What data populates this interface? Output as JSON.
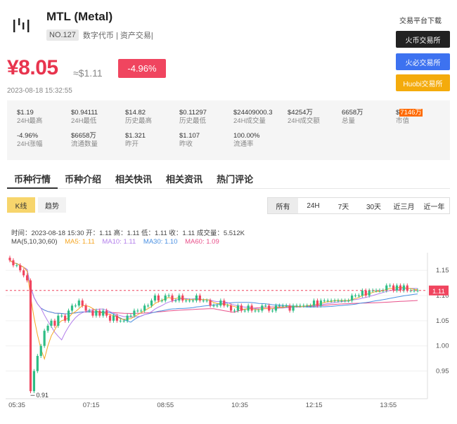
{
  "coin": {
    "name": "MTL (Metal)",
    "rank": "NO.127",
    "tags": "数字代币 | 资产交易|"
  },
  "price": {
    "cny": "¥8.05",
    "usd": "≈$1.11",
    "change": "-4.96%",
    "time": "2023-08-18 15:32:55"
  },
  "exchanges": {
    "title": "交易平台下载",
    "items": [
      "火币交易所",
      "火必交易所",
      "Huobi交易所"
    ]
  },
  "stats": [
    {
      "value": "$1.19",
      "label": "24H最高"
    },
    {
      "value": "$0.94111",
      "label": "24H最低"
    },
    {
      "value": "$14.82",
      "label": "历史最高"
    },
    {
      "value": "$0.11297",
      "label": "历史最低"
    },
    {
      "value": "$24409000.3",
      "label": "24H成交量"
    },
    {
      "value": "$4254万",
      "label": "24H成交额"
    },
    {
      "value": "6658万",
      "label": "总量"
    },
    {
      "value_prefix": "$",
      "value": "7146万",
      "label": "市值"
    },
    {
      "value": "-4.96%",
      "label": "24H涨幅"
    },
    {
      "value": "$6658万",
      "label": "流通数量"
    },
    {
      "value": "$1.321",
      "label": "昨开"
    },
    {
      "value": "$1.107",
      "label": "昨收"
    },
    {
      "value": "100.00%",
      "label": "流通率"
    }
  ],
  "tabs": [
    "币种行情",
    "币种介绍",
    "相关快讯",
    "相关资讯",
    "热门评论"
  ],
  "controls": {
    "kline": "K线",
    "trend": "趋势",
    "ranges": [
      "所有",
      "24H",
      "7天",
      "30天",
      "近三月",
      "近一年"
    ]
  },
  "chart_data": {
    "type": "candlestick",
    "ohlc_legend": "时间：2023-08-18 15:30    开：1.11    高：1.11    低：1.11    收：1.11    成交量：5.512K",
    "ma_label": "MA(5,10,30,60)",
    "ma_values": [
      {
        "name": "MA5",
        "value": "MA5: 1.11",
        "color": "#f5a623"
      },
      {
        "name": "MA10",
        "value": "MA10: 1.11",
        "color": "#b37feb"
      },
      {
        "name": "MA30",
        "value": "MA30: 1.10",
        "color": "#4a90e2"
      },
      {
        "name": "MA60",
        "value": "MA60: 1.09",
        "color": "#e8508a"
      }
    ],
    "x_ticks": [
      "05:35",
      "07:15",
      "08:55",
      "10:35",
      "12:15",
      "13:55"
    ],
    "y_ticks": [
      "1.15",
      "1.10",
      "1.05",
      "1.00",
      "0.95"
    ],
    "ylim": [
      0.895,
      1.185
    ],
    "current_price": "1.11",
    "min_annotation": "0.91",
    "up_color": "#2ebd85",
    "down_color": "#f0455f",
    "close_series": [
      1.17,
      1.16,
      1.16,
      1.15,
      1.14,
      1.13,
      0.91,
      0.95,
      0.98,
      1.0,
      1.03,
      1.04,
      1.05,
      1.04,
      1.06,
      1.06,
      1.05,
      1.07,
      1.08,
      1.08,
      1.09,
      1.08,
      1.07,
      1.07,
      1.06,
      1.07,
      1.06,
      1.07,
      1.06,
      1.05,
      1.06,
      1.05,
      1.05,
      1.05,
      1.06,
      1.06,
      1.07,
      1.07,
      1.07,
      1.08,
      1.08,
      1.09,
      1.1,
      1.09,
      1.09,
      1.1,
      1.1,
      1.09,
      1.09,
      1.1,
      1.09,
      1.09,
      1.09,
      1.09,
      1.1,
      1.09,
      1.09,
      1.09,
      1.08,
      1.08,
      1.08,
      1.09,
      1.08,
      1.08,
      1.07,
      1.07,
      1.08,
      1.07,
      1.07,
      1.08,
      1.07,
      1.07,
      1.07,
      1.08,
      1.08,
      1.07,
      1.07,
      1.08,
      1.08,
      1.08,
      1.08,
      1.07,
      1.08,
      1.08,
      1.08,
      1.08,
      1.08,
      1.08,
      1.09,
      1.08,
      1.09,
      1.09,
      1.09,
      1.09,
      1.09,
      1.09,
      1.09,
      1.09,
      1.09,
      1.1,
      1.1,
      1.1,
      1.11,
      1.1,
      1.11,
      1.11,
      1.11,
      1.11,
      1.11,
      1.12,
      1.12,
      1.11,
      1.12,
      1.11,
      1.12,
      1.11,
      1.11,
      1.11,
      1.11
    ]
  }
}
